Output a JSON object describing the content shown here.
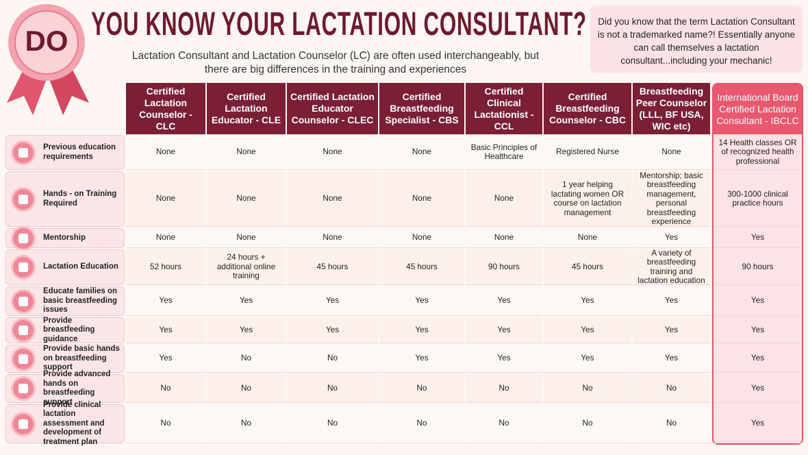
{
  "header": {
    "badge": "DO",
    "title": "YOU KNOW YOUR LACTATION CONSULTANT?",
    "subtitle": "Lactation Consultant and Lactation Counselor (LC) are often used interchangeably, but there are big differences in the training and experiences"
  },
  "note": "Did you know that the term Lactation Consultant is not a trademarked name?! Essentially anyone can call themselves a lactation consultant...including your mechanic!",
  "table": {
    "columns": [
      "Certified Lactation Counselor - CLC",
      "Certified Lactation Educator - CLE",
      "Certified Lactation Educator Counselor - CLEC",
      "Certified Breastfeeding Specialist - CBS",
      "Certified Clinical Lactationist - CCL",
      "Certified Breastfeeding Counselor - CBC",
      "Breastfeeding Peer Counselor (LLL, BF USA, WIC etc)",
      "International Board Certified Lactation Consultant - IBCLC"
    ],
    "rows": [
      {
        "label": "Previous education requirements",
        "cells": [
          "None",
          "None",
          "None",
          "None",
          "Basic Principles of Healthcare",
          "Registered Nurse",
          "None",
          "14 Health classes OR of recognized health professional"
        ]
      },
      {
        "label": "Hands - on Training Required",
        "cells": [
          "None",
          "None",
          "None",
          "None",
          "None",
          "1 year helping lactating women OR course on lactation management",
          "Mentorship; basic breastfeeding management, personal breastfeeding experience",
          "300-1000 clinical practice hours"
        ]
      },
      {
        "label": "Mentorship",
        "cells": [
          "None",
          "None",
          "None",
          "None",
          "None",
          "None",
          "Yes",
          "Yes"
        ]
      },
      {
        "label": "Lactation Education",
        "cells": [
          "52 hours",
          "24 hours + additional online training",
          "45 hours",
          "45 hours",
          "90 hours",
          "45 hours",
          "A variety of breastfeeding training and lactation education",
          "90 hours"
        ]
      },
      {
        "label": "Educate families on basic breastfeeding issues",
        "cells": [
          "Yes",
          "Yes",
          "Yes",
          "Yes",
          "Yes",
          "Yes",
          "Yes",
          "Yes"
        ]
      },
      {
        "label": "Provide breastfeeding guidance",
        "cells": [
          "Yes",
          "Yes",
          "Yes",
          "Yes",
          "Yes",
          "Yes",
          "Yes",
          "Yes"
        ]
      },
      {
        "label": "Provide basic hands on breastfeeding support",
        "cells": [
          "Yes",
          "No",
          "No",
          "Yes",
          "Yes",
          "Yes",
          "Yes",
          "Yes"
        ]
      },
      {
        "label": "Provide advanced hands on breastfeeding support",
        "cells": [
          "No",
          "No",
          "No",
          "No",
          "No",
          "No",
          "No",
          "Yes"
        ]
      },
      {
        "label": "Provide clinical lactation assessment and development of treatment plan",
        "cells": [
          "No",
          "No",
          "No",
          "No",
          "No",
          "No",
          "No",
          "Yes"
        ]
      }
    ]
  }
}
